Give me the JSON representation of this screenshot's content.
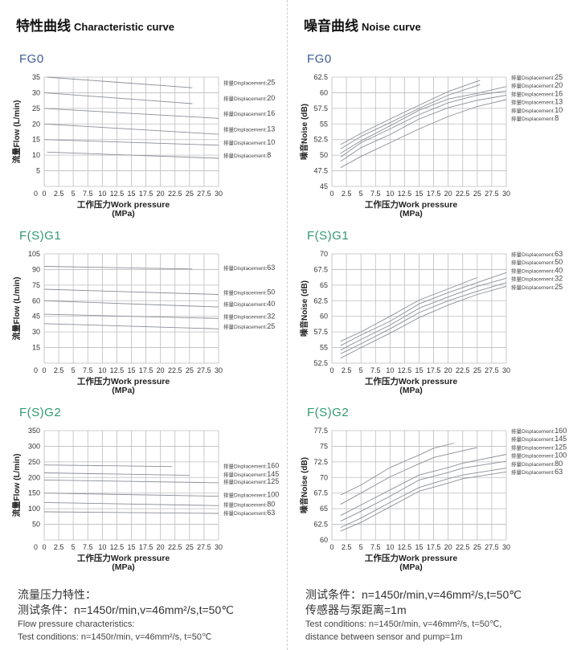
{
  "header": {
    "left_cn": "特性曲线",
    "left_en": "Characteristic curve",
    "right_cn": "噪音曲线",
    "right_en": "Noise curve"
  },
  "colors": {
    "fg0_title": "#3d5b97",
    "fsg_title": "#2f9a6c",
    "grid": "#bdbdbd",
    "line": "#8a8f96"
  },
  "label_prefix": "排量Displacement:",
  "chart_data": [
    {
      "id": "flow-fg0",
      "type": "line",
      "title": "FG0",
      "title_color": "#3d5b97",
      "ylabel": "流量Flow (L/min)",
      "xlabel": "工作压力Work pressure",
      "xunit": "(MPa)",
      "xlim": [
        0,
        30
      ],
      "xticks": [
        "0",
        "2.5",
        "5",
        "7.5",
        "10",
        "12.5",
        "15",
        "17.5",
        "20",
        "22.5",
        "25",
        "27.5",
        "30"
      ],
      "ylim": [
        0,
        35
      ],
      "yticks": [
        5,
        10,
        15,
        20,
        25,
        30,
        35
      ],
      "label_mode": "end",
      "series": [
        {
          "name": "25",
          "points": [
            [
              0.5,
              35
            ],
            [
              25.5,
              31.6
            ]
          ]
        },
        {
          "name": "20",
          "points": [
            [
              0,
              30
            ],
            [
              25.5,
              26.5
            ]
          ]
        },
        {
          "name": "16",
          "points": [
            [
              0,
              25
            ],
            [
              30,
              21.8
            ]
          ]
        },
        {
          "name": "13",
          "points": [
            [
              0,
              20
            ],
            [
              30,
              16.7
            ]
          ]
        },
        {
          "name": "10",
          "points": [
            [
              0,
              15
            ],
            [
              30,
              13.2
            ]
          ]
        },
        {
          "name": "8",
          "points": [
            [
              0.5,
              11
            ],
            [
              30,
              9
            ]
          ]
        }
      ]
    },
    {
      "id": "noise-fg0",
      "type": "line",
      "title": "FG0",
      "title_color": "#3d5b97",
      "ylabel": "噪音Noise (dB)",
      "xlabel": "工作压力Work pressure",
      "xunit": "(MPa)",
      "xlim": [
        0,
        30
      ],
      "xticks": [
        "0",
        "2.5",
        "5",
        "7.5",
        "10",
        "12.5",
        "15",
        "17.5",
        "20",
        "22.5",
        "25",
        "27.5",
        "30"
      ],
      "ylim": [
        45,
        62.5
      ],
      "yticks": [
        45,
        47.5,
        50,
        52.5,
        55,
        57.5,
        60,
        62.5
      ],
      "label_mode": "stack",
      "series": [
        {
          "name": "25",
          "points": [
            [
              1.5,
              51.7
            ],
            [
              2.5,
              52.2
            ],
            [
              5,
              53.5
            ],
            [
              10,
              55.8
            ],
            [
              15,
              58
            ],
            [
              20,
              60.2
            ],
            [
              25.5,
              62
            ]
          ]
        },
        {
          "name": "20",
          "points": [
            [
              1.5,
              51
            ],
            [
              5,
              53
            ],
            [
              10,
              55.2
            ],
            [
              15,
              57.5
            ],
            [
              20,
              59.6
            ],
            [
              25.5,
              61.3
            ]
          ]
        },
        {
          "name": "16",
          "points": [
            [
              1.5,
              50.3
            ],
            [
              5,
              52.3
            ],
            [
              10,
              54.7
            ],
            [
              15,
              57.2
            ],
            [
              20,
              59
            ],
            [
              25,
              59.9
            ],
            [
              30,
              61
            ]
          ]
        },
        {
          "name": "13",
          "points": [
            [
              1.5,
              49.7
            ],
            [
              5,
              52
            ],
            [
              10,
              54.2
            ],
            [
              15,
              56.5
            ],
            [
              20,
              58.4
            ],
            [
              25,
              59.6
            ],
            [
              30,
              60.3
            ]
          ]
        },
        {
          "name": "10",
          "points": [
            [
              1.5,
              49
            ],
            [
              5,
              51.2
            ],
            [
              10,
              53.3
            ],
            [
              15,
              55.8
            ],
            [
              20,
              57.6
            ],
            [
              25,
              58.8
            ],
            [
              30,
              59.6
            ]
          ]
        },
        {
          "name": "8",
          "points": [
            [
              1.5,
              48
            ],
            [
              5,
              49.8
            ],
            [
              10,
              52
            ],
            [
              15,
              54.2
            ],
            [
              20,
              56.2
            ],
            [
              25,
              57.8
            ],
            [
              30,
              58.9
            ]
          ]
        }
      ]
    },
    {
      "id": "flow-fsg1",
      "type": "line",
      "title": "F(S)G1",
      "title_color": "#2f9a6c",
      "ylabel": "流量Flow (L/min)",
      "xlabel": "工作压力Work pressure",
      "xunit": "(MPa)",
      "xlim": [
        0,
        30
      ],
      "xticks": [
        "0",
        "2.5",
        "5",
        "7.5",
        "10",
        "12.5",
        "15",
        "17.5",
        "20",
        "22.5",
        "25",
        "27.5",
        "30"
      ],
      "ylim": [
        0,
        105
      ],
      "yticks": [
        15,
        30,
        45,
        60,
        75,
        90,
        105
      ],
      "label_mode": "end",
      "series": [
        {
          "name": "63",
          "points": [
            [
              0,
              93
            ],
            [
              25.5,
              90.5
            ]
          ]
        },
        {
          "name": "50",
          "points": [
            [
              0,
              71
            ],
            [
              30,
              66
            ]
          ]
        },
        {
          "name": "40",
          "points": [
            [
              0,
              60
            ],
            [
              30,
              54
            ]
          ]
        },
        {
          "name": "32",
          "points": [
            [
              0,
              47
            ],
            [
              30,
              43
            ]
          ]
        },
        {
          "name": "25",
          "points": [
            [
              0,
              38
            ],
            [
              30,
              33
            ]
          ]
        }
      ]
    },
    {
      "id": "noise-fsg1",
      "type": "line",
      "title": "F(S)G1",
      "title_color": "#2f9a6c",
      "ylabel": "噪音Noise (dB)",
      "xlabel": "工作压力Work pressure",
      "xunit": "(MPa)",
      "xlim": [
        0,
        30
      ],
      "xticks": [
        "0",
        "2.5",
        "5",
        "7.5",
        "10",
        "12.5",
        "15",
        "17.5",
        "20",
        "22.5",
        "25",
        "27.5",
        "30"
      ],
      "ylim": [
        52.5,
        70
      ],
      "yticks": [
        52.5,
        55,
        57.5,
        60,
        62.5,
        65,
        67.5,
        70
      ],
      "label_mode": "stack",
      "series": [
        {
          "name": "63",
          "points": [
            [
              1.5,
              56
            ],
            [
              5,
              57.5
            ],
            [
              10,
              60
            ],
            [
              15,
              62.6
            ],
            [
              20,
              64.4
            ],
            [
              25,
              66.2
            ]
          ]
        },
        {
          "name": "50",
          "points": [
            [
              1.5,
              55.3
            ],
            [
              5,
              57
            ],
            [
              10,
              59.2
            ],
            [
              15,
              62
            ],
            [
              20,
              63.8
            ],
            [
              25,
              65.4
            ],
            [
              30,
              67
            ]
          ]
        },
        {
          "name": "40",
          "points": [
            [
              1.5,
              54.6
            ],
            [
              5,
              56.3
            ],
            [
              10,
              58.6
            ],
            [
              15,
              61.3
            ],
            [
              20,
              63.1
            ],
            [
              25,
              64.8
            ],
            [
              30,
              66.1
            ]
          ]
        },
        {
          "name": "32",
          "points": [
            [
              1.5,
              54
            ],
            [
              5,
              55.6
            ],
            [
              10,
              58
            ],
            [
              15,
              60.6
            ],
            [
              20,
              62.5
            ],
            [
              25,
              64
            ],
            [
              30,
              65.4
            ]
          ]
        },
        {
          "name": "25",
          "points": [
            [
              1.5,
              53.3
            ],
            [
              5,
              55
            ],
            [
              10,
              57.3
            ],
            [
              15,
              59.8
            ],
            [
              20,
              61.8
            ],
            [
              25,
              63.5
            ],
            [
              30,
              64.8
            ]
          ]
        }
      ]
    },
    {
      "id": "flow-fsg2",
      "type": "line",
      "title": "F(S)G2",
      "title_color": "#2f9a6c",
      "ylabel": "流量Flow (L/min)",
      "xlabel": "工作压力Work pressure",
      "xunit": "(MPa)",
      "xlim": [
        0,
        30
      ],
      "xticks": [
        "0",
        "2.5",
        "5",
        "7.5",
        "10",
        "12.5",
        "15",
        "17.5",
        "20",
        "22.5",
        "25",
        "27.5",
        "30"
      ],
      "ylim": [
        0,
        350
      ],
      "yticks": [
        50,
        100,
        150,
        200,
        250,
        300,
        350
      ],
      "label_mode": "end",
      "series": [
        {
          "name": "160",
          "points": [
            [
              0,
              240
            ],
            [
              22,
              235
            ]
          ]
        },
        {
          "name": "145",
          "points": [
            [
              0,
              215
            ],
            [
              25,
              207
            ]
          ]
        },
        {
          "name": "125",
          "points": [
            [
              0,
              192
            ],
            [
              30,
              183
            ]
          ]
        },
        {
          "name": "100",
          "points": [
            [
              0,
              150
            ],
            [
              30,
              140
            ]
          ]
        },
        {
          "name": "80",
          "points": [
            [
              0,
              120
            ],
            [
              30,
              110
            ]
          ]
        },
        {
          "name": "63",
          "points": [
            [
              0,
              90
            ],
            [
              30,
              85
            ]
          ]
        }
      ]
    },
    {
      "id": "noise-fsg2",
      "type": "line",
      "title": "F(S)G2",
      "title_color": "#2f9a6c",
      "ylabel": "噪音Noise (dB)",
      "xlabel": "工作压力Work pressure",
      "xunit": "(MPa)",
      "xlim": [
        0,
        30
      ],
      "xticks": [
        "0",
        "2.5",
        "5",
        "7.5",
        "10",
        "12.5",
        "15",
        "17.5",
        "20",
        "22.5",
        "25",
        "27.5",
        "30"
      ],
      "ylim": [
        60,
        77.5
      ],
      "yticks": [
        60,
        62.5,
        65,
        67.5,
        70,
        72.5,
        75,
        77.5
      ],
      "label_mode": "stack",
      "series": [
        {
          "name": "160",
          "points": [
            [
              1.5,
              67.2
            ],
            [
              5,
              68.8
            ],
            [
              10,
              71.6
            ],
            [
              15,
              73.6
            ],
            [
              17.5,
              74.7
            ],
            [
              21,
              75.5
            ]
          ]
        },
        {
          "name": "145",
          "points": [
            [
              1.5,
              65.7
            ],
            [
              5,
              67.5
            ],
            [
              10,
              70.1
            ],
            [
              15,
              72.2
            ],
            [
              17.5,
              73.2
            ],
            [
              22.5,
              74.3
            ],
            [
              25,
              74.8
            ]
          ]
        },
        {
          "name": "125",
          "points": [
            [
              1.5,
              63.9
            ],
            [
              5,
              65.6
            ],
            [
              10,
              68
            ],
            [
              15,
              70.4
            ],
            [
              20,
              71.6
            ],
            [
              22.5,
              72.3
            ],
            [
              30,
              73.7
            ]
          ]
        },
        {
          "name": "100",
          "points": [
            [
              1.5,
              63
            ],
            [
              5,
              64.6
            ],
            [
              10,
              67
            ],
            [
              15,
              69.6
            ],
            [
              20,
              70.8
            ],
            [
              22.5,
              71.5
            ],
            [
              30,
              72.6
            ]
          ]
        },
        {
          "name": "80",
          "points": [
            [
              1.5,
              62
            ],
            [
              5,
              63.5
            ],
            [
              10,
              66
            ],
            [
              15,
              68.4
            ],
            [
              20,
              69.8
            ],
            [
              22.5,
              70.4
            ],
            [
              30,
              71.5
            ]
          ]
        },
        {
          "name": "63",
          "points": [
            [
              1.5,
              61.4
            ],
            [
              5,
              62.8
            ],
            [
              10,
              65.3
            ],
            [
              15,
              67.8
            ],
            [
              20,
              69.1
            ],
            [
              22.5,
              69.8
            ],
            [
              30,
              70.9
            ]
          ]
        }
      ]
    }
  ],
  "notes": {
    "left": [
      "流量压力特性：",
      "测试条件：n=1450r/min,v=46mm²/s,t=50℃",
      "Flow pressure characteristics:",
      "Test conditions: n=1450r/min, v=46mm²/s, t=50℃"
    ],
    "right": [
      "测试条件：n=1450r/min,v=46mm²/s,t=50℃",
      "传感器与泵距离=1m",
      "Test conditions: n=1450r/min, v=46mm²/s, t=50℃,",
      "distance between sensor and pump=1m"
    ]
  }
}
